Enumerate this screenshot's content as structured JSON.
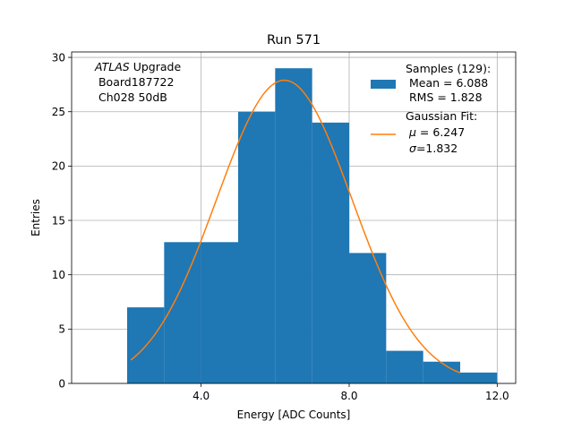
{
  "chart_data": {
    "type": "bar",
    "title": "Run 571",
    "xlabel": "Energy [ADC Counts]",
    "ylabel": "Entries",
    "xlim": [
      0.5,
      12.5
    ],
    "ylim": [
      0,
      30.5
    ],
    "xticks": [
      4.0,
      8.0,
      12.0
    ],
    "xtick_labels": [
      "4.0",
      "8.0",
      "12.0"
    ],
    "yticks": [
      0,
      5,
      10,
      15,
      20,
      25,
      30
    ],
    "ytick_labels": [
      "0",
      "5",
      "10",
      "15",
      "20",
      "25",
      "30"
    ],
    "grid": true,
    "histogram": {
      "bin_edges": [
        2,
        3,
        4,
        5,
        6,
        7,
        8,
        9,
        10,
        11,
        12
      ],
      "counts": [
        7,
        13,
        13,
        25,
        29,
        24,
        12,
        3,
        2,
        1
      ],
      "color": "#1f77b4"
    },
    "fit": {
      "type": "gaussian",
      "mu": 6.247,
      "sigma": 1.832,
      "amplitude": 27.9,
      "x_range": [
        2.1,
        11.0
      ],
      "color": "#ff7f0e"
    },
    "annotation": {
      "atlas": "ATLAS",
      "upgrade": " Upgrade",
      "line2": " Board187722",
      "line3": " Ch028 50dB"
    },
    "legend": {
      "position": "top-right",
      "samples": {
        "title": "Samples (129):",
        "mean": " Mean = 6.088",
        "rms": " RMS = 1.828"
      },
      "fit": {
        "title": "Gaussian Fit:",
        "mu_symbol": "μ",
        "mu_value": " = 6.247",
        "sigma_symbol": "σ",
        "sigma_value": "=1.832"
      }
    }
  }
}
